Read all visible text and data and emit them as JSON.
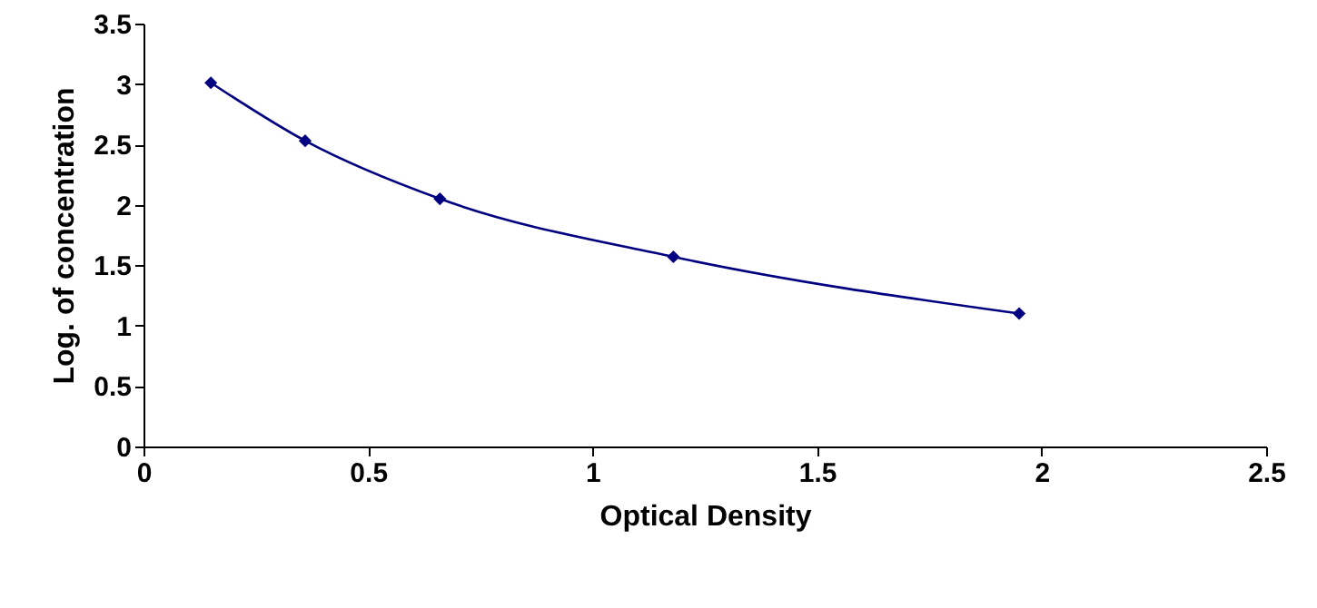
{
  "chart_data": {
    "type": "line",
    "xlabel": "Optical Density",
    "ylabel": "Log. of concentration",
    "x": [
      0.15,
      0.36,
      0.66,
      1.18,
      1.95
    ],
    "series": [
      {
        "color": "#000080",
        "values": [
          3.01,
          2.53,
          2.05,
          1.57,
          1.1
        ]
      }
    ],
    "xlim": [
      0,
      2.5
    ],
    "xticks": [
      0,
      0.5,
      1,
      1.5,
      2,
      2.5
    ],
    "ylim": [
      0,
      3.5
    ],
    "yticks": [
      0,
      0.5,
      1,
      1.5,
      2,
      2.5,
      3,
      3.5
    ],
    "grid": false,
    "marker": "diamond",
    "line_style": "solid"
  }
}
